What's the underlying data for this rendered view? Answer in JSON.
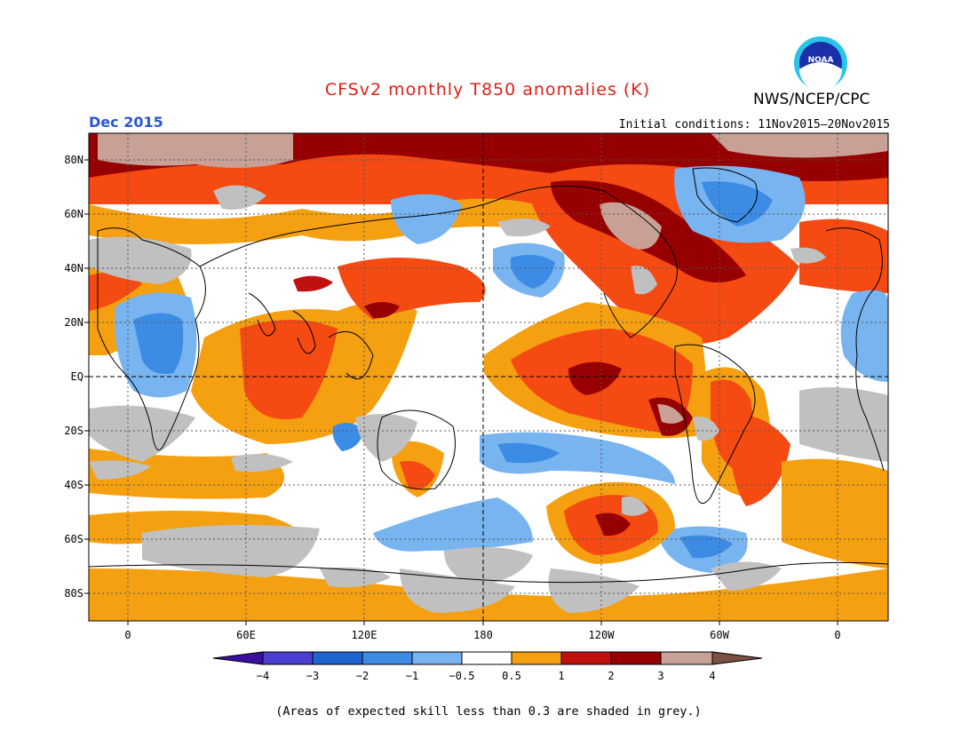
{
  "header": {
    "title": "CFSv2 monthly T850 anomalies (K)",
    "valid_month": "Dec 2015",
    "initial_conditions": "Initial conditions: 11Nov2015—20Nov2015",
    "agency": "NWS/NCEP/CPC",
    "logo_text": "NOAA"
  },
  "colors": {
    "title": "#e0201a",
    "valid_month": "#2a55d8",
    "neg4": "#3a0fa0",
    "neg3": "#4a3fd0",
    "neg2": "#1e64d2",
    "neg1": "#3c8ce6",
    "neg05": "#78b4f0",
    "zero": "#ffffff",
    "pos05": "#f5a010",
    "pos1": "#f54a12",
    "pos2": "#c01010",
    "pos3": "#960000",
    "pos4": "#c8a096",
    "pos4plus": "#7a5040",
    "low_skill": "#c0c0c0"
  },
  "axes": {
    "lat_labels": [
      "80N",
      "60N",
      "40N",
      "20N",
      "EQ",
      "20S",
      "40S",
      "60S",
      "80S"
    ],
    "lon_labels": [
      "0",
      "60E",
      "120E",
      "180",
      "120W",
      "60W",
      "0"
    ]
  },
  "colorbar": {
    "ticks": [
      "−4",
      "−3",
      "−2",
      "−1",
      "−0.5",
      "0.5",
      "1",
      "2",
      "3",
      "4"
    ],
    "bins": [
      "neg3",
      "neg2",
      "neg1",
      "neg05",
      "zero",
      "pos05",
      "pos1",
      "pos2",
      "pos3"
    ]
  },
  "footnote": "(Areas of expected skill less than 0.3 are shaded in grey.)"
}
